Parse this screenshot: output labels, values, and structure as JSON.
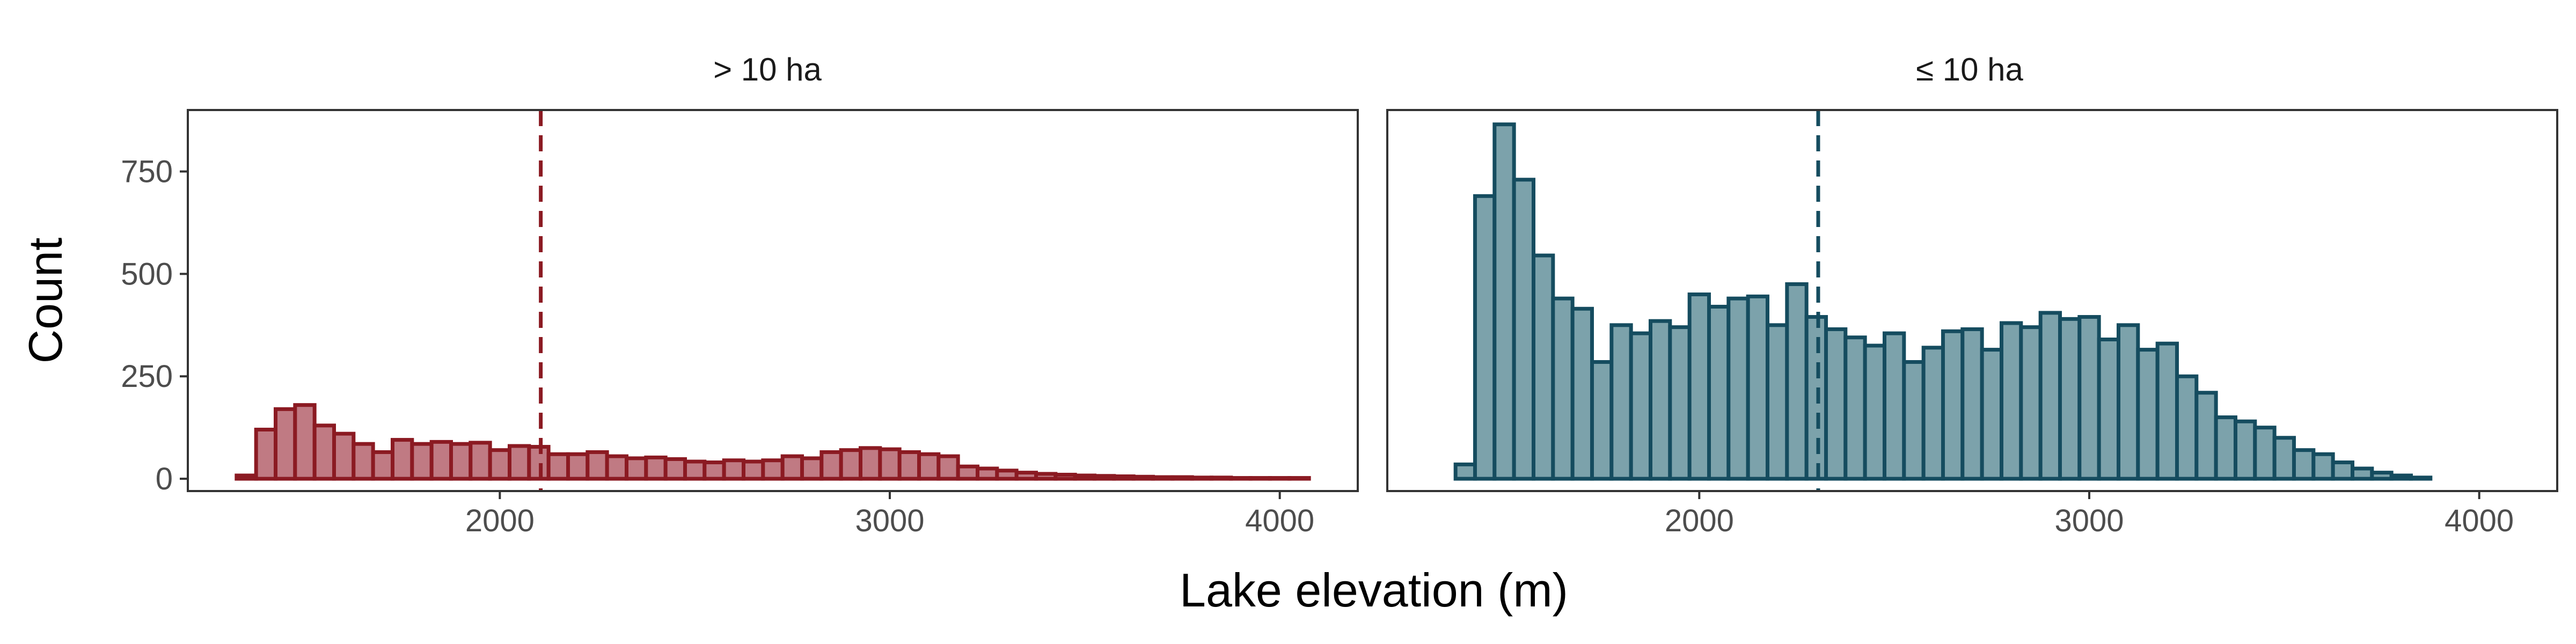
{
  "chart_data": {
    "type": "bar",
    "chart_kind": "faceted histogram",
    "xlabel": "Lake elevation (m)",
    "ylabel": "Count",
    "xlim": [
      1200,
      4200
    ],
    "ylim": [
      -30,
      900
    ],
    "x_ticks": [
      2000,
      3000,
      4000
    ],
    "y_ticks": [
      0,
      250,
      500,
      750
    ],
    "bin_width": 50,
    "grid": false,
    "legend": "none",
    "panels": [
      {
        "title": "> 10 ha",
        "fill": "#c07a83",
        "stroke": "#8b1a22",
        "median_line": 2105,
        "bin_start": 1325,
        "values": [
          8,
          120,
          170,
          180,
          130,
          110,
          85,
          65,
          95,
          85,
          90,
          85,
          88,
          70,
          80,
          78,
          60,
          60,
          65,
          55,
          50,
          52,
          48,
          42,
          40,
          45,
          42,
          45,
          55,
          50,
          65,
          70,
          75,
          72,
          65,
          60,
          55,
          30,
          25,
          20,
          15,
          12,
          10,
          8,
          7,
          6,
          5,
          4,
          4,
          3,
          3,
          2,
          2,
          2,
          2
        ]
      },
      {
        "title": "≤ 10 ha",
        "fill": "#7ca2ab",
        "stroke": "#154c5f",
        "median_line": 2305,
        "bin_start": 1375,
        "values": [
          35,
          690,
          865,
          730,
          545,
          440,
          415,
          285,
          375,
          355,
          385,
          370,
          450,
          420,
          440,
          445,
          375,
          475,
          395,
          365,
          345,
          325,
          355,
          285,
          320,
          360,
          365,
          315,
          380,
          370,
          405,
          390,
          395,
          340,
          375,
          315,
          330,
          250,
          210,
          150,
          140,
          125,
          100,
          70,
          60,
          40,
          25,
          15,
          8,
          3
        ]
      }
    ]
  }
}
